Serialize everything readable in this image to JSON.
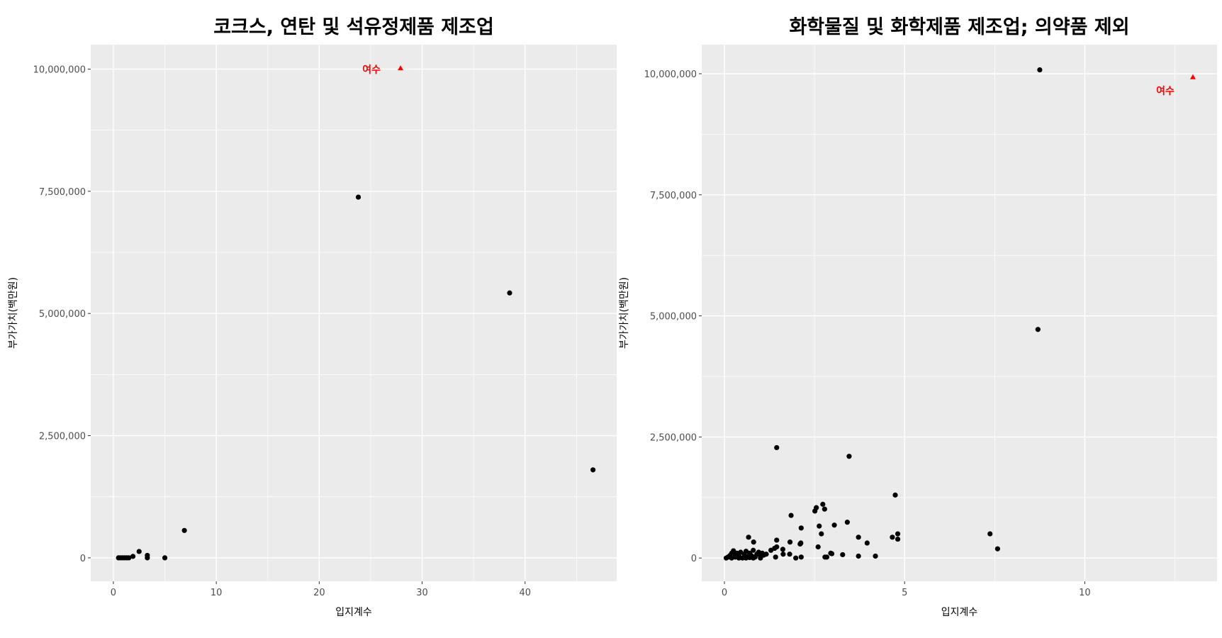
{
  "chart_data": [
    {
      "type": "scatter",
      "title": "코크스, 연탄 및 석유정제품 제조업",
      "xlabel": "입지계수",
      "ylabel": "부가가치(백만원)",
      "xlim": [
        -2.2,
        48.9
      ],
      "ylim": [
        -480000,
        10500000
      ],
      "xticks": [
        0,
        10,
        20,
        30,
        40
      ],
      "yticks": [
        0,
        2500000,
        5000000,
        7500000,
        10000000
      ],
      "ytick_labels": [
        "0",
        "2,500,000",
        "5,000,000",
        "7,500,000",
        "10,000,000"
      ],
      "grid": true,
      "points": [
        [
          0.5,
          0
        ],
        [
          0.7,
          0
        ],
        [
          0.9,
          0
        ],
        [
          1.1,
          0
        ],
        [
          1.3,
          0
        ],
        [
          1.5,
          0
        ],
        [
          1.9,
          30000
        ],
        [
          2.5,
          130000
        ],
        [
          3.3,
          50000
        ],
        [
          3.3,
          0
        ],
        [
          5.0,
          0
        ],
        [
          6.9,
          560000
        ],
        [
          23.8,
          7380000
        ],
        [
          38.5,
          5420000
        ],
        [
          46.6,
          1800000
        ]
      ],
      "highlight": {
        "x": 27.9,
        "y": 10020000,
        "label": "여수",
        "color": "#ff0000",
        "shape": "triangle"
      }
    },
    {
      "type": "scatter",
      "title": "화학물질 및 화학제품 제조업; 의약품 제외",
      "xlabel": "입지계수",
      "ylabel": "부가가치(백만원)",
      "xlim": [
        -0.63,
        13.67
      ],
      "ylim": [
        -480000,
        10600000
      ],
      "xticks": [
        0,
        5,
        10
      ],
      "yticks": [
        0,
        2500000,
        5000000,
        7500000,
        10000000
      ],
      "ytick_labels": [
        "0",
        "2,500,000",
        "5,000,000",
        "7,500,000",
        "10,000,000"
      ],
      "grid": true,
      "points": [
        [
          1.45,
          2280000
        ],
        [
          3.46,
          2100000
        ],
        [
          4.74,
          1300000
        ],
        [
          7.37,
          500000
        ],
        [
          7.58,
          190000
        ],
        [
          2.73,
          1110000
        ],
        [
          2.55,
          1040000
        ],
        [
          2.51,
          970000
        ],
        [
          2.78,
          1010000
        ],
        [
          1.85,
          880000
        ],
        [
          3.41,
          740000
        ],
        [
          3.05,
          680000
        ],
        [
          2.13,
          620000
        ],
        [
          2.63,
          660000
        ],
        [
          2.69,
          500000
        ],
        [
          0.67,
          430000
        ],
        [
          0.81,
          330000
        ],
        [
          1.45,
          370000
        ],
        [
          1.82,
          330000
        ],
        [
          2.12,
          310000
        ],
        [
          2.1,
          290000
        ],
        [
          3.72,
          430000
        ],
        [
          3.96,
          310000
        ],
        [
          4.66,
          430000
        ],
        [
          4.81,
          500000
        ],
        [
          4.81,
          390000
        ],
        [
          2.6,
          230000
        ],
        [
          2.98,
          90000
        ],
        [
          2.95,
          100000
        ],
        [
          3.28,
          70000
        ],
        [
          3.72,
          40000
        ],
        [
          4.19,
          40000
        ],
        [
          2.79,
          20000
        ],
        [
          2.84,
          20000
        ],
        [
          2.13,
          20000
        ],
        [
          1.98,
          0
        ],
        [
          1.81,
          80000
        ],
        [
          1.63,
          80000
        ],
        [
          1.62,
          180000
        ],
        [
          1.45,
          230000
        ],
        [
          1.39,
          200000
        ],
        [
          1.29,
          160000
        ],
        [
          1.42,
          20000
        ],
        [
          1.16,
          80000
        ],
        [
          1.09,
          60000
        ],
        [
          0.05,
          0
        ],
        [
          0.1,
          20000
        ],
        [
          0.15,
          50000
        ],
        [
          0.2,
          100000
        ],
        [
          0.25,
          150000
        ],
        [
          0.3,
          20000
        ],
        [
          0.35,
          100000
        ],
        [
          0.4,
          50000
        ],
        [
          0.45,
          120000
        ],
        [
          0.5,
          0
        ],
        [
          0.55,
          80000
        ],
        [
          0.6,
          140000
        ],
        [
          0.65,
          30000
        ],
        [
          0.7,
          100000
        ],
        [
          0.75,
          50000
        ],
        [
          0.8,
          160000
        ],
        [
          0.85,
          20000
        ],
        [
          0.9,
          80000
        ],
        [
          0.95,
          120000
        ],
        [
          1.0,
          30000
        ],
        [
          1.05,
          100000
        ],
        [
          0.2,
          0
        ],
        [
          0.4,
          0
        ],
        [
          0.6,
          0
        ],
        [
          0.8,
          0
        ],
        [
          1.0,
          0
        ],
        [
          0.3,
          60000
        ],
        [
          0.7,
          10000
        ],
        [
          8.75,
          10080000
        ],
        [
          8.7,
          4720000
        ]
      ],
      "highlight": {
        "x": 13.0,
        "y": 9930000,
        "label": "여수",
        "color": "#ff0000",
        "shape": "triangle"
      }
    }
  ]
}
